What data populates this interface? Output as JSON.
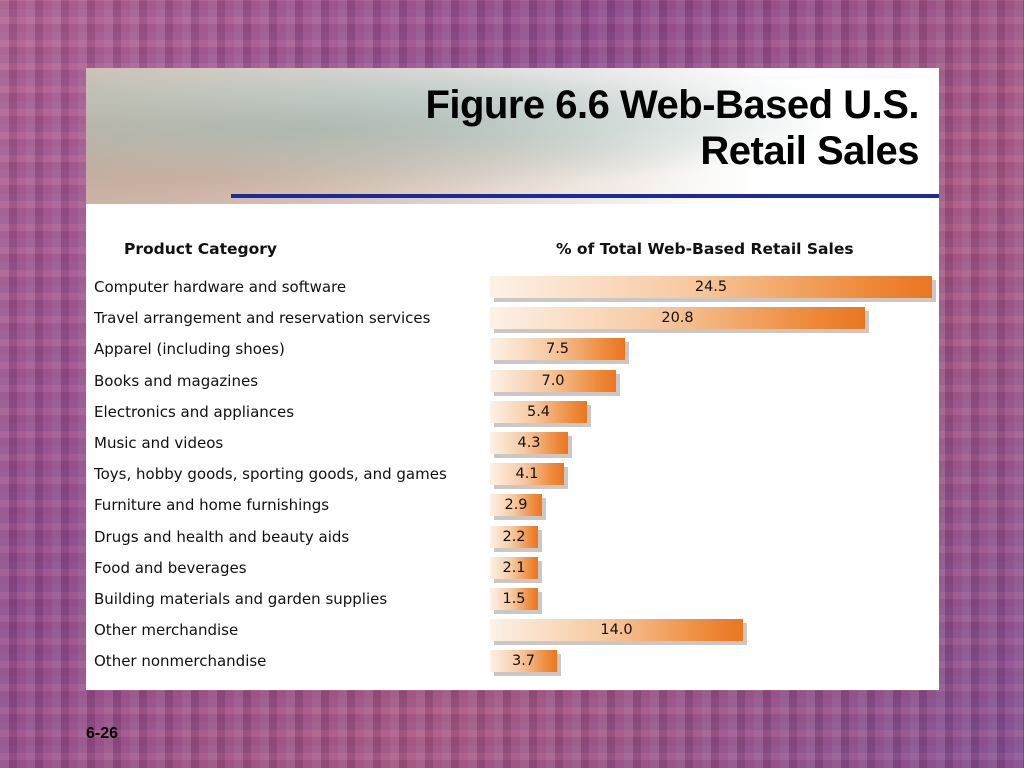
{
  "slide": {
    "title_line1": "Figure 6.6 Web-Based U.S.",
    "title_line2": "Retail Sales",
    "page_number": "6-26"
  },
  "chart_data": {
    "type": "bar",
    "title": "",
    "xlabel": "Product Category",
    "ylabel": "% of  Total Web-Based Retail Sales",
    "categories": [
      "Computer hardware and software",
      "Travel arrangement and reservation services",
      "Apparel (including shoes)",
      "Books and magazines",
      "Electronics and appliances",
      "Music and videos",
      "Toys, hobby goods, sporting goods, and games",
      "Furniture and home furnishings",
      "Drugs and health and beauty aids",
      "Food and beverages",
      "Building materials and garden supplies",
      "Other merchandise",
      "Other nonmerchandise"
    ],
    "values": [
      24.5,
      20.8,
      7.5,
      7.0,
      5.4,
      4.3,
      4.1,
      2.9,
      2.2,
      2.1,
      1.5,
      14.0,
      3.7
    ],
    "value_labels": [
      "24.5",
      "20.8",
      "7.5",
      "7.0",
      "5.4",
      "4.3",
      "4.1",
      "2.9",
      "2.2",
      "2.1",
      "1.5",
      "14.0",
      "3.7"
    ],
    "orientation": "horizontal",
    "bar_color_start": "#fdf1e6",
    "bar_color_end": "#e97622",
    "xlim": [
      0,
      24.5
    ],
    "grid": false,
    "legend": "none"
  }
}
